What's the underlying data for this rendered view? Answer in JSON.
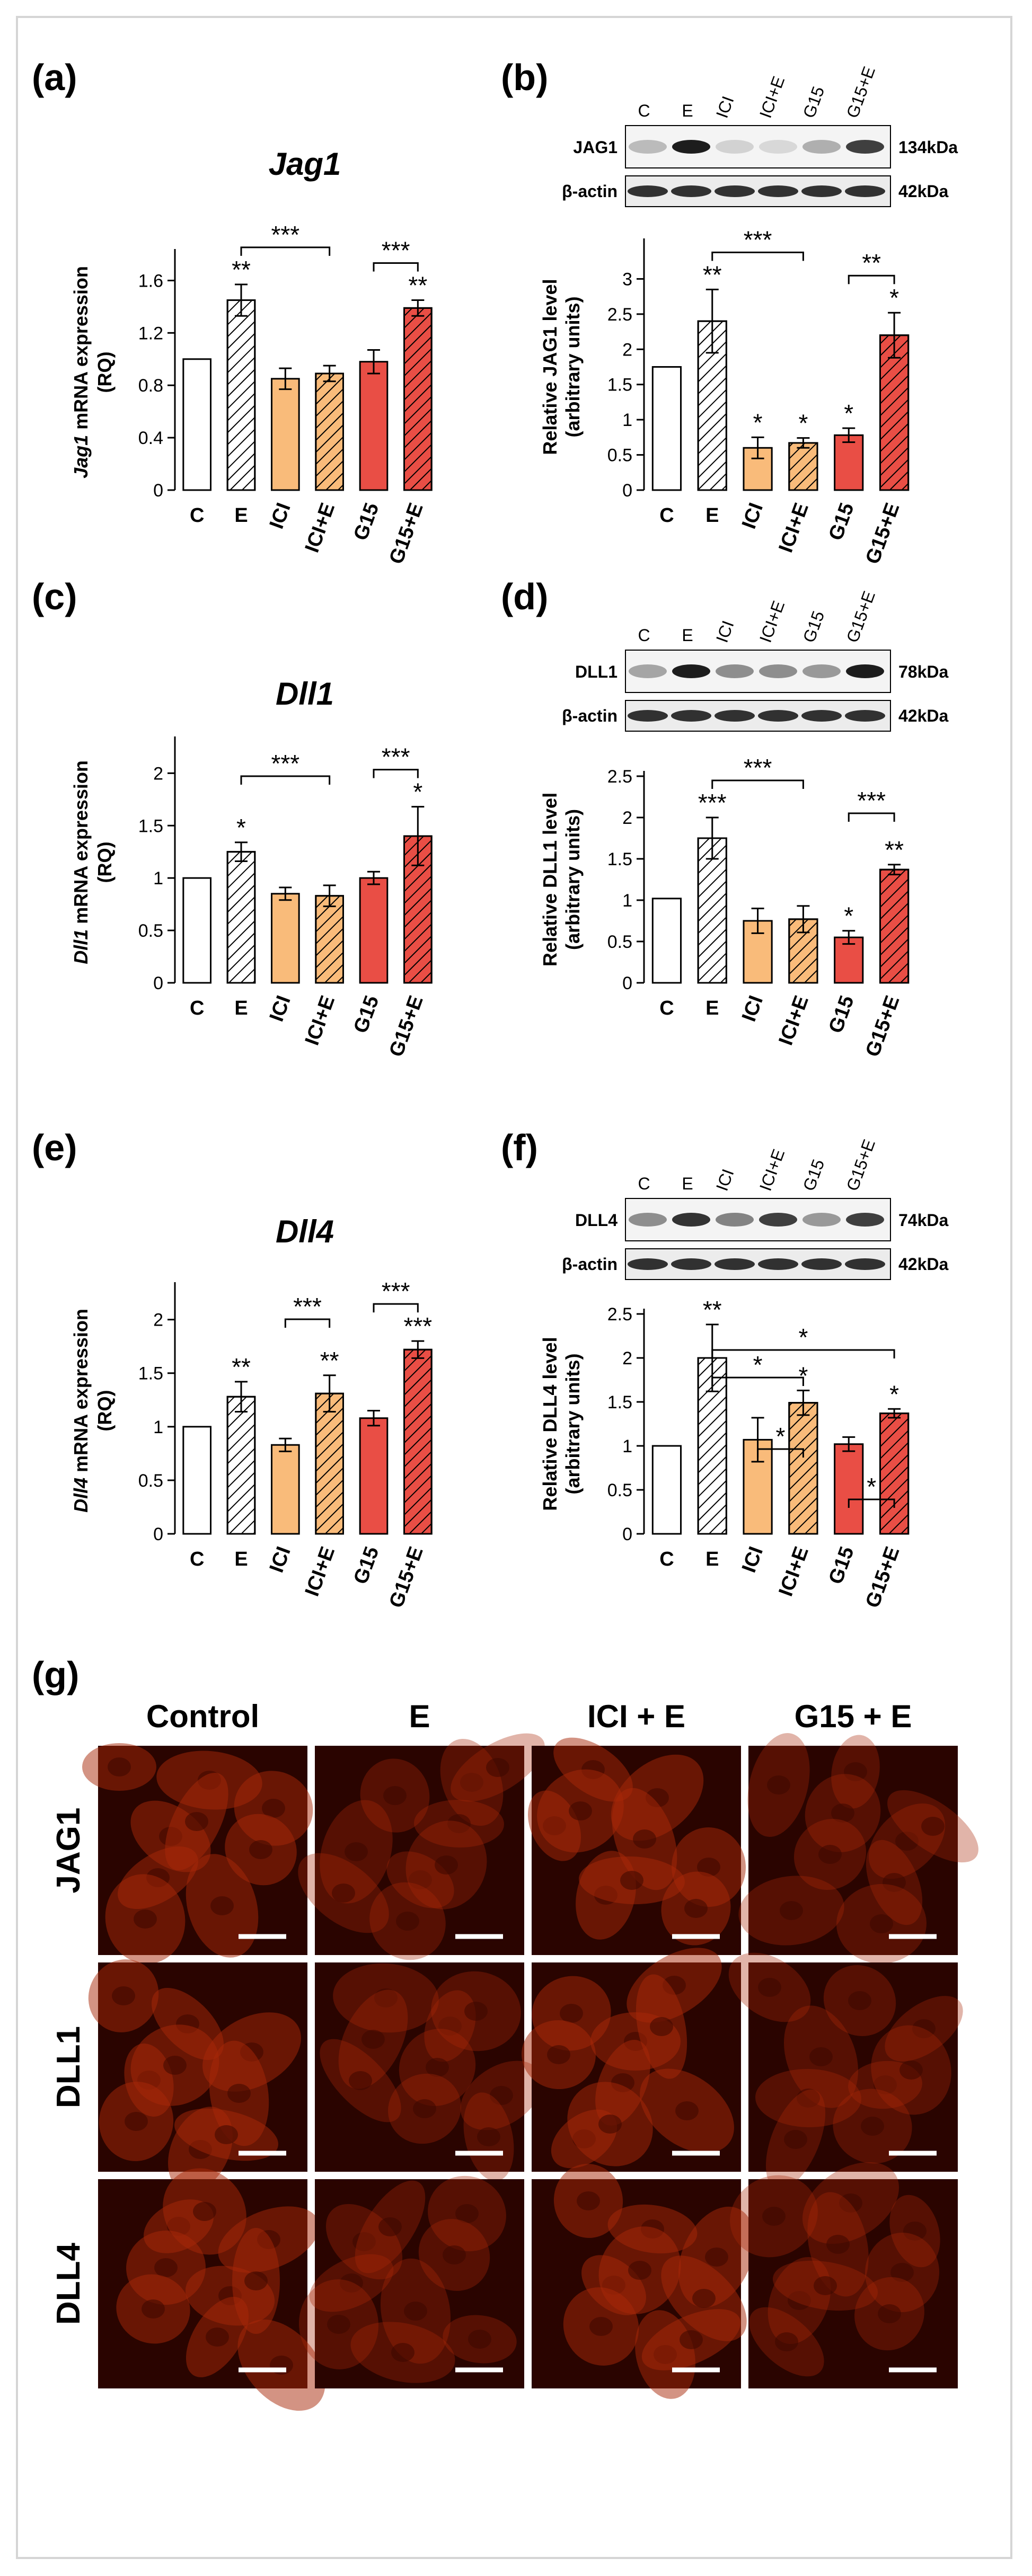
{
  "panel_letters": {
    "a": "(a)",
    "b": "(b)",
    "c": "(c)",
    "d": "(d)",
    "e": "(e)",
    "f": "(f)",
    "g": "(g)"
  },
  "colors": {
    "control": "#ffffff",
    "estrogen": "#ffffff",
    "ici": "#f9bb7a",
    "ici_e": "#f9bb7a",
    "g15": "#e94e45",
    "g15_e": "#e94e45",
    "stroke": "#000000"
  },
  "blot_lanes": [
    "C",
    "E",
    "ICI",
    "ICI+E",
    "G15",
    "G15+E"
  ],
  "blots": [
    {
      "name": "JAG1",
      "kda": "134kDa",
      "ref": "β-actin",
      "ref_kda": "42kDa"
    },
    {
      "name": "DLL1",
      "kda": "78kDa",
      "ref": "β-actin",
      "ref_kda": "42kDa"
    },
    {
      "name": "DLL4",
      "kda": "74kDa",
      "ref": "β-actin",
      "ref_kda": "42kDa"
    }
  ],
  "chart_data": [
    {
      "id": "a",
      "type": "bar",
      "title": "Jag1",
      "gene": "Jag1",
      "ylabel": "mRNA expression (RQ)",
      "categories": [
        "C",
        "E",
        "ICI",
        "ICI+E",
        "G15",
        "G15+E"
      ],
      "values": [
        1.0,
        1.45,
        0.85,
        0.89,
        0.98,
        1.39
      ],
      "errors": [
        0,
        0.12,
        0.08,
        0.06,
        0.09,
        0.06
      ],
      "ylim": [
        0,
        1.8
      ],
      "yticks": [
        0,
        0.4,
        0.8,
        1.2,
        1.6
      ],
      "ytick_labels": [
        "0",
        "0.4",
        "0.8",
        "1.2",
        "1.6"
      ],
      "stars": [
        "",
        "**",
        "",
        "",
        "",
        "**"
      ],
      "brackets": [
        {
          "from": 1,
          "to": 3,
          "label": "***"
        },
        {
          "from": 4,
          "to": 5,
          "label": "***"
        }
      ]
    },
    {
      "id": "b",
      "type": "bar",
      "ylabel_lines": [
        "Relative  JAG1 level",
        "(arbitrary units)"
      ],
      "categories": [
        "C",
        "E",
        "ICI",
        "ICI+E",
        "G15",
        "G15+E"
      ],
      "values": [
        1.75,
        2.4,
        0.6,
        0.67,
        0.78,
        2.2
      ],
      "errors": [
        0,
        0.45,
        0.15,
        0.07,
        0.1,
        0.32
      ],
      "ylim": [
        0,
        3.5
      ],
      "yticks": [
        0,
        0.5,
        1,
        1.5,
        2,
        2.5,
        3
      ],
      "ytick_labels": [
        "0",
        "0.5",
        "1",
        "1.5",
        "2",
        "2.5",
        "3"
      ],
      "stars": [
        "",
        "**",
        "*",
        "*",
        "*",
        "*"
      ],
      "brackets": [
        {
          "from": 1,
          "to": 3,
          "label": "***"
        },
        {
          "from": 4,
          "to": 5,
          "label": "**"
        }
      ]
    },
    {
      "id": "c",
      "type": "bar",
      "title": "Dll1",
      "gene": "Dll1",
      "ylabel": "mRNA expression (RQ)",
      "categories": [
        "C",
        "E",
        "ICI",
        "ICI+E",
        "G15",
        "G15+E"
      ],
      "values": [
        1.0,
        1.25,
        0.85,
        0.83,
        1.0,
        1.4
      ],
      "errors": [
        0,
        0.09,
        0.06,
        0.1,
        0.06,
        0.28
      ],
      "ylim": [
        0,
        2.3
      ],
      "yticks": [
        0,
        0.5,
        1,
        1.5,
        2
      ],
      "ytick_labels": [
        "0",
        "0.5",
        "1",
        "1.5",
        "2"
      ],
      "stars": [
        "",
        "*",
        "",
        "",
        "",
        "*"
      ],
      "brackets": [
        {
          "from": 1,
          "to": 3,
          "label": "***"
        },
        {
          "from": 4,
          "to": 5,
          "label": "***"
        }
      ]
    },
    {
      "id": "d",
      "type": "bar",
      "ylabel_lines": [
        "Relative  DLL1 level",
        "(arbitrary units)"
      ],
      "categories": [
        "C",
        "E",
        "ICI",
        "ICI+E",
        "G15",
        "G15+E"
      ],
      "values": [
        1.02,
        1.75,
        0.75,
        0.77,
        0.55,
        1.37
      ],
      "errors": [
        0,
        0.25,
        0.15,
        0.16,
        0.08,
        0.06
      ],
      "ylim": [
        0,
        2.5
      ],
      "yticks": [
        0,
        0.5,
        1,
        1.5,
        2,
        2.5
      ],
      "ytick_labels": [
        "0",
        "0.5",
        "1",
        "1.5",
        "2",
        "2.5"
      ],
      "stars": [
        "",
        "***",
        "",
        "",
        "*",
        "**"
      ],
      "brackets": [
        {
          "from": 1,
          "to": 3,
          "label": "***"
        },
        {
          "from": 4,
          "to": 5,
          "label": "***"
        }
      ]
    },
    {
      "id": "e",
      "type": "bar",
      "title": "Dll4",
      "gene": "Dll4",
      "ylabel": "mRNA expression (RQ)",
      "categories": [
        "C",
        "E",
        "ICI",
        "ICI+E",
        "G15",
        "G15+E"
      ],
      "values": [
        1.0,
        1.28,
        0.83,
        1.31,
        1.08,
        1.72
      ],
      "errors": [
        0,
        0.14,
        0.06,
        0.17,
        0.07,
        0.08
      ],
      "ylim": [
        0,
        2.3
      ],
      "yticks": [
        0,
        0.5,
        1,
        1.5,
        2
      ],
      "ytick_labels": [
        "0",
        "0.5",
        "1",
        "1.5",
        "2"
      ],
      "stars": [
        "",
        "**",
        "",
        "**",
        "",
        "***"
      ],
      "brackets": [
        {
          "from": 2,
          "to": 3,
          "label": "***"
        },
        {
          "from": 4,
          "to": 5,
          "label": "***"
        }
      ]
    },
    {
      "id": "f",
      "type": "bar",
      "ylabel_lines": [
        "Relative  DLL4 level",
        "(arbitrary units)"
      ],
      "categories": [
        "C",
        "E",
        "ICI",
        "ICI+E",
        "G15",
        "G15+E"
      ],
      "values": [
        1.0,
        2.0,
        1.07,
        1.49,
        1.02,
        1.37
      ],
      "errors": [
        0,
        0.38,
        0.25,
        0.14,
        0.08,
        0.05
      ],
      "ylim": [
        0,
        2.5
      ],
      "yticks": [
        0,
        0.5,
        1,
        1.5,
        2,
        2.5
      ],
      "ytick_labels": [
        "0",
        "0.5",
        "1",
        "1.5",
        "2",
        "2.5"
      ],
      "stars": [
        "",
        "**",
        "",
        "*",
        "",
        "*"
      ],
      "brackets": [
        {
          "from": 2,
          "to": 3,
          "label": "*"
        },
        {
          "from": 4,
          "to": 5,
          "label": "*"
        },
        {
          "from": 1,
          "to": 3,
          "label": "*"
        },
        {
          "from": 1,
          "to": 5,
          "label": "*"
        }
      ]
    }
  ],
  "if_panel": {
    "columns": [
      "Control",
      "E",
      "ICI + E",
      "G15 + E"
    ],
    "rows": [
      "JAG1",
      "DLL1",
      "DLL4"
    ]
  }
}
